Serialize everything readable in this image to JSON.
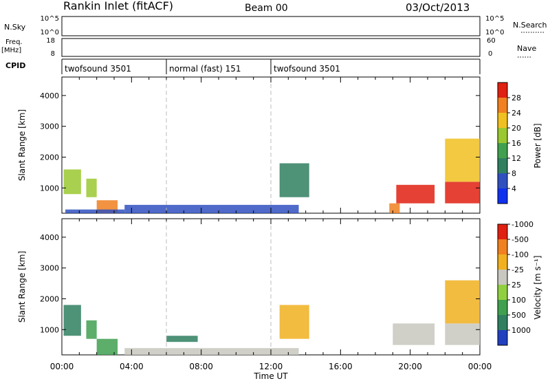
{
  "header": {
    "station": "Rankin Inlet (fitACF)",
    "beam": "Beam 00",
    "date": "03/Oct/2013"
  },
  "strips": {
    "nsky": {
      "label": "N.Sky",
      "tick_top": "10^5",
      "tick_bottom": "10^0"
    },
    "nsearch": {
      "label": "N.Search",
      "tick_top": "10^5",
      "tick_bottom": "10^0"
    },
    "freq": {
      "label_top": "Freq.",
      "label_bottom": "[MHz]",
      "tick_top": "18",
      "tick_bottom": "8"
    },
    "nave": {
      "label": "Nave",
      "tick_top": "60",
      "tick_bottom": "0"
    },
    "cpid": {
      "label": "CPID",
      "segments": [
        {
          "name": "twofsound 3501",
          "start_h": 0,
          "end_h": 6
        },
        {
          "name": "normal (fast) 151",
          "start_h": 6,
          "end_h": 12
        },
        {
          "name": "twofsound 3501",
          "start_h": 12,
          "end_h": 24
        }
      ]
    }
  },
  "chart_data": [
    {
      "type": "heatmap",
      "panel": "power",
      "ylabel": "Slant Range [km]",
      "xlim_hours": [
        0,
        24
      ],
      "ylim": [
        180,
        4600
      ],
      "yticks": [
        1000,
        2000,
        3000,
        4000
      ],
      "colorbar": {
        "label": "Power [dB]",
        "ticks": [
          "4",
          "8",
          "12",
          "16",
          "20",
          "24",
          "28"
        ],
        "colors": [
          "#1030f0",
          "#3050c0",
          "#2f7f60",
          "#40a050",
          "#9ac830",
          "#f0c020",
          "#f08020",
          "#e02010"
        ]
      },
      "regions": [
        {
          "t0": 0.1,
          "t1": 1.1,
          "r0": 800,
          "r1": 1600,
          "level": 4
        },
        {
          "t0": 1.4,
          "t1": 2.0,
          "r0": 700,
          "r1": 1300,
          "level": 4
        },
        {
          "t0": 2.0,
          "t1": 3.2,
          "r0": 180,
          "r1": 600,
          "level": 6
        },
        {
          "t0": 0.2,
          "t1": 3.6,
          "r0": 180,
          "r1": 300,
          "level": 1
        },
        {
          "t0": 3.6,
          "t1": 13.6,
          "r0": 180,
          "r1": 450,
          "level": 1
        },
        {
          "t0": 12.5,
          "t1": 14.2,
          "r0": 700,
          "r1": 1800,
          "level": 2
        },
        {
          "t0": 18.8,
          "t1": 19.4,
          "r0": 180,
          "r1": 500,
          "level": 6
        },
        {
          "t0": 19.2,
          "t1": 21.4,
          "r0": 500,
          "r1": 1100,
          "level": 7
        },
        {
          "t0": 22.0,
          "t1": 24.0,
          "r0": 500,
          "r1": 1200,
          "level": 7
        },
        {
          "t0": 22.0,
          "t1": 24.0,
          "r0": 1200,
          "r1": 2600,
          "level": 5
        }
      ]
    },
    {
      "type": "heatmap",
      "panel": "velocity",
      "ylabel": "Slant Range [km]",
      "xlabel": "Time UT",
      "xlim_hours": [
        0,
        24
      ],
      "xticks": [
        "00:00",
        "04:00",
        "08:00",
        "12:00",
        "16:00",
        "20:00",
        "00:00"
      ],
      "ylim": [
        180,
        4600
      ],
      "yticks": [
        1000,
        2000,
        3000,
        4000
      ],
      "colorbar": {
        "label": "Velocity [m s⁻¹]",
        "ticks": [
          "1000",
          "500",
          "100",
          "25",
          "-25",
          "-100",
          "-500",
          "-1000"
        ],
        "colors": [
          "#2040c0",
          "#2f7f60",
          "#40a050",
          "#90d040",
          "#c8c8c0",
          "#f0b020",
          "#f08020",
          "#e02010"
        ]
      },
      "regions": [
        {
          "t0": 0.1,
          "t1": 1.1,
          "r0": 800,
          "r1": 1800,
          "level": 1
        },
        {
          "t0": 1.4,
          "t1": 2.0,
          "r0": 700,
          "r1": 1300,
          "level": 2
        },
        {
          "t0": 2.0,
          "t1": 3.2,
          "r0": 180,
          "r1": 700,
          "level": 2
        },
        {
          "t0": 3.6,
          "t1": 13.6,
          "r0": 180,
          "r1": 400,
          "level": 4
        },
        {
          "t0": 6.0,
          "t1": 7.8,
          "r0": 600,
          "r1": 800,
          "level": 1
        },
        {
          "t0": 12.5,
          "t1": 14.2,
          "r0": 700,
          "r1": 1800,
          "level": 5
        },
        {
          "t0": 19.0,
          "t1": 21.4,
          "r0": 500,
          "r1": 1200,
          "level": 4
        },
        {
          "t0": 22.0,
          "t1": 24.0,
          "r0": 500,
          "r1": 1200,
          "level": 4
        },
        {
          "t0": 22.0,
          "t1": 24.0,
          "r0": 1200,
          "r1": 2600,
          "level": 5
        }
      ]
    }
  ]
}
